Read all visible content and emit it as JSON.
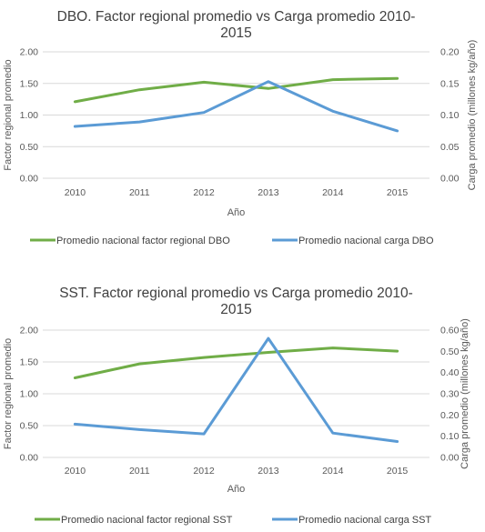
{
  "charts": [
    {
      "title_line1": "DBO. Factor regional promedio vs Carga promedio 2010-",
      "title_line2": "2015",
      "xlabel": "Año",
      "ylabel_left": "Factor regional promedio",
      "ylabel_right": "Carga promedio (millones kg/año)",
      "left_ticks": [
        "0.00",
        "0.50",
        "1.00",
        "1.50",
        "2.00"
      ],
      "right_ticks": [
        "0.00",
        "0.05",
        "0.10",
        "0.15",
        "0.20"
      ],
      "x_ticks": [
        "2010",
        "2011",
        "2012",
        "2013",
        "2014",
        "2015"
      ],
      "legend": [
        "Promedio nacional factor regional DBO",
        "Promedio nacional carga DBO"
      ]
    },
    {
      "title_line1": "SST. Factor regional promedio vs Carga promedio 2010-",
      "title_line2": "2015",
      "xlabel": "Año",
      "ylabel_left": "Factor regional promedio",
      "ylabel_right": "Carga promedio (millones kg/año)",
      "left_ticks": [
        "0.00",
        "0.50",
        "1.00",
        "1.50",
        "2.00"
      ],
      "right_ticks": [
        "0.00",
        "0.10",
        "0.20",
        "0.30",
        "0.40",
        "0.50",
        "0.60"
      ],
      "x_ticks": [
        "2010",
        "2011",
        "2012",
        "2013",
        "2014",
        "2015"
      ],
      "legend": [
        "Promedio nacional factor regional SST",
        "Promedio nacional carga SST"
      ]
    }
  ],
  "colors": {
    "green": "#70ad47",
    "blue": "#5b9bd5"
  },
  "chart_data": [
    {
      "type": "line",
      "title": "DBO. Factor regional promedio vs Carga promedio 2010-2015",
      "xlabel": "Año",
      "ylabel": "Factor regional promedio",
      "y2label": "Carga promedio (millones kg/año)",
      "categories": [
        "2010",
        "2011",
        "2012",
        "2013",
        "2014",
        "2015"
      ],
      "ylim": [
        0,
        2
      ],
      "y2lim": [
        0,
        0.2
      ],
      "legend_position": "bottom",
      "series": [
        {
          "name": "Promedio nacional factor regional DBO",
          "axis": "left",
          "color": "#70ad47",
          "values": [
            1.21,
            1.4,
            1.52,
            1.42,
            1.56,
            1.58
          ]
        },
        {
          "name": "Promedio nacional carga DBO",
          "axis": "right",
          "color": "#5b9bd5",
          "values": [
            0.082,
            0.089,
            0.104,
            0.153,
            0.106,
            0.075
          ]
        }
      ]
    },
    {
      "type": "line",
      "title": "SST. Factor regional promedio vs Carga promedio 2010-2015",
      "xlabel": "Año",
      "ylabel": "Factor regional promedio",
      "y2label": "Carga promedio (millones kg/año)",
      "categories": [
        "2010",
        "2011",
        "2012",
        "2013",
        "2014",
        "2015"
      ],
      "ylim": [
        0,
        2
      ],
      "y2lim": [
        0,
        0.6
      ],
      "legend_position": "bottom",
      "series": [
        {
          "name": "Promedio nacional factor regional SST",
          "axis": "left",
          "color": "#70ad47",
          "values": [
            1.25,
            1.47,
            1.57,
            1.65,
            1.72,
            1.67
          ]
        },
        {
          "name": "Promedio nacional carga SST",
          "axis": "right",
          "color": "#5b9bd5",
          "values": [
            0.157,
            0.131,
            0.111,
            0.561,
            0.115,
            0.075
          ]
        }
      ]
    }
  ]
}
